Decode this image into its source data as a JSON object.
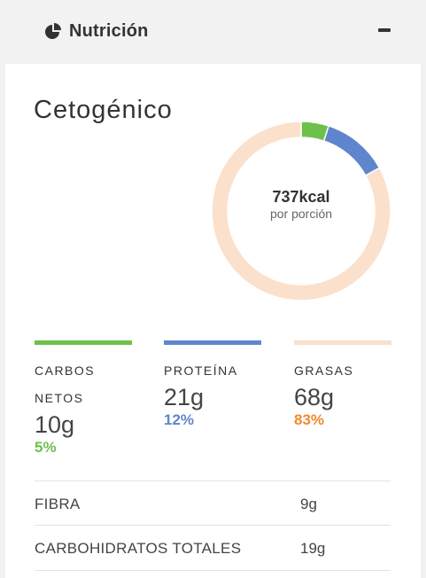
{
  "header": {
    "title": "Nutrición",
    "icon": "pie-chart-icon",
    "toggle_icon": "minus-icon"
  },
  "card": {
    "diet_title": "Cetogénico",
    "calories": "737kcal",
    "per_serving": "por porción"
  },
  "chart_data": {
    "type": "pie",
    "categories": [
      "CARBOS NETOS",
      "PROTEÍNA",
      "GRASAS"
    ],
    "values": [
      5,
      12,
      83
    ],
    "colors": [
      "#6fbf4b",
      "#5f86cc",
      "#fbe0cb"
    ]
  },
  "macros": [
    {
      "label": "CARBOS NETOS",
      "label_line1": "CARBOS",
      "label_line2": "NETOS",
      "value": "10g",
      "percent": "5%",
      "color": "#6fbf4b",
      "pct_color": "#6fbf4b"
    },
    {
      "label": "PROTEÍNA",
      "value": "21g",
      "percent": "12%",
      "color": "#5f86cc",
      "pct_color": "#5f86cc"
    },
    {
      "label": "GRASAS",
      "value": "68g",
      "percent": "83%",
      "color": "#fbe0cb",
      "pct_color": "#f08a2c"
    }
  ],
  "rows": [
    {
      "label": "FIBRA",
      "value": "9g"
    },
    {
      "label": "CARBOHIDRATOS TOTALES",
      "value": "19g"
    }
  ]
}
